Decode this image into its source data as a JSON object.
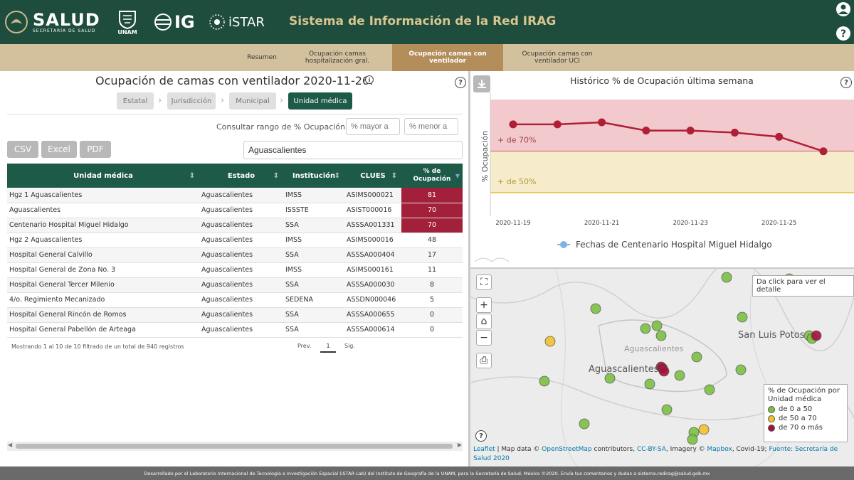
{
  "header": {
    "salud_logo": "SALUD",
    "salud_sub": "SECRETARÍA DE SALUD",
    "unam_logo": "UNAM",
    "ig_logo": "IG",
    "istar_logo": "iSTAR",
    "title": "Sistema de Información de la Red IRAG"
  },
  "tabs": [
    {
      "label": "Resumen"
    },
    {
      "label": "Ocupación camas hospitalización gral."
    },
    {
      "label": "Ocupación camas con ventilador"
    },
    {
      "label": "Ocupación camas con ventilador UCI"
    }
  ],
  "left": {
    "title": "Ocupación de camas con ventilador 2020-11-26.",
    "breadcrumbs": [
      "Estatal",
      "Jurisdicción",
      "Municipal",
      "Unidad médica"
    ],
    "range_label": "Consultar rango de % Ocupación:",
    "range_min_placeholder": "% mayor a",
    "range_max_placeholder": "% menor a",
    "export_buttons": [
      "CSV",
      "Excel",
      "PDF"
    ],
    "search_value": "Aguascalientes",
    "table": {
      "headers": [
        "Unidad médica",
        "Estado",
        "Institución",
        "CLUES",
        "% de Ocupación"
      ],
      "rows": [
        [
          "Hgz 1 Aguascalientes",
          "Aguascalientes",
          "IMSS",
          "ASIMS000021",
          "81"
        ],
        [
          "Aguascalientes",
          "Aguascalientes",
          "ISSSTE",
          "ASIST000016",
          "70"
        ],
        [
          "Centenario Hospital Miguel Hidalgo",
          "Aguascalientes",
          "SSA",
          "ASSSA001331",
          "70"
        ],
        [
          "Hgz 2 Aguascalientes",
          "Aguascalientes",
          "IMSS",
          "ASIMS000016",
          "48"
        ],
        [
          "Hospital General Calvillo",
          "Aguascalientes",
          "SSA",
          "ASSSA000404",
          "17"
        ],
        [
          "Hospital General de Zona No. 3",
          "Aguascalientes",
          "IMSS",
          "ASIMS000161",
          "11"
        ],
        [
          "Hospital General Tercer Milenio",
          "Aguascalientes",
          "SSA",
          "ASSSA000030",
          "8"
        ],
        [
          "4/o. Regimiento Mecanizado",
          "Aguascalientes",
          "SEDENA",
          "ASSDN000046",
          "5"
        ],
        [
          "Hospital General Rincón de Romos",
          "Aguascalientes",
          "SSA",
          "ASSSA000655",
          "0"
        ],
        [
          "Hospital General Pabellón de Arteaga",
          "Aguascalientes",
          "SSA",
          "ASSSA000614",
          "0"
        ]
      ]
    },
    "table_info": "Mostrando 1 al 10 de 10 filtrado de un total de 940 registros",
    "pagination": {
      "prev": "Prev.",
      "page": "1",
      "next": "Sig."
    }
  },
  "chart_data": {
    "type": "line",
    "title": "Histórico % de Ocupación última semana",
    "ylabel": "% Ocupación",
    "xlabel": "",
    "x": [
      "2020-11-19",
      "2020-11-20",
      "2020-11-21",
      "2020-11-22",
      "2020-11-23",
      "2020-11-24",
      "2020-11-25",
      "2020-11-26"
    ],
    "xtick_labels": [
      "2020-11-19",
      "2020-11-21",
      "2020-11-23",
      "2020-11-25"
    ],
    "series": [
      {
        "name": "Fechas de Centenario Hospital Miguel Hidalgo",
        "values": [
          83,
          83,
          84,
          80,
          80,
          79,
          77,
          70
        ]
      }
    ],
    "ylim": [
      40,
      95
    ],
    "bands": [
      {
        "label": "+ de 70%",
        "from": 70,
        "to": 95,
        "color": "#f2c9cd",
        "line_color": "#b52b3a"
      },
      {
        "label": "+ de 50%",
        "from": 50,
        "to": 70,
        "color": "#f6eccc",
        "line_color": "#e0c23c"
      }
    ],
    "line_color": "#b01f35",
    "legend_position": "bottom"
  },
  "map": {
    "tooltip": "Da click para ver el detalle",
    "labels": [
      "Aguascalientes",
      "Aguascalientes",
      "San Luis Potos"
    ],
    "legend": {
      "title": "% de Ocupación por Unidad médica",
      "items": [
        {
          "label": "de 0 a 50",
          "color": "#7bc043"
        },
        {
          "label": "de 50 a 70",
          "color": "#f2c12e"
        },
        {
          "label": "de 70 o más",
          "color": "#a3123a"
        }
      ]
    },
    "attribution": {
      "leaflet": "Leaflet",
      "mapdata": " | Map data © ",
      "osm": "OpenStreetMap",
      "contrib": " contributors, ",
      "license": "CC-BY-SA",
      "imagery": ", Imagery © ",
      "mapbox": "Mapbox",
      "covid": ", Covid-19; ",
      "source": "Fuente: Secretaría de Salud 2020"
    }
  },
  "footer": "Desarrollado por el Laboratorio Internacional de Tecnología e Investigación Espacial (iSTAR Lab) del Instituto de Geografía de la UNAM, para la Secretaría de Salud. México ©2020. Envía tus comentarios y dudas a sistema.redirag@salud.gob.mx"
}
